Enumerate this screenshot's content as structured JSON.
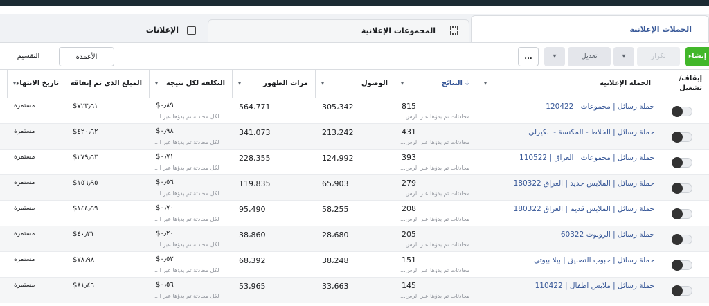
{
  "tabs": [
    "الحملات الإعلانية",
    "المجموعات الإعلانية",
    "الإعلانات"
  ],
  "toolbar": {
    "create": "إنشاء",
    "duplicate": "تكرار",
    "edit": "تعديل",
    "more": "...",
    "columns": "الأعمدة",
    "breakdown": "التقسيم"
  },
  "table": {
    "headers": [
      "إيقاف/ تشغيل",
      "الحملة الإعلانية",
      "النتائج",
      "الوصول",
      "مرات الظهور",
      "التكلفة لكل نتيجة",
      "المبلغ الذي تم إنفاقه",
      "تاريخ الانتهاء"
    ],
    "rows": [
      {
        "name": "حملة رسائل | مجموعات | 120422",
        "results": "815",
        "results_note": "محادثات تم بدؤها عبر الرس...",
        "reach": "305،342",
        "impressions": "564،771",
        "cost": "$٠٫٨٩",
        "cost_note": "لكل محادثة تم بدؤها عبر ا...",
        "spent": "$٧٢٣٫٦١",
        "end": "مستمرة"
      },
      {
        "name": "حملة رسائل | الخلاط - المكنسة - الكيرلي",
        "results": "431",
        "results_note": "محادثات تم بدؤها عبر الرس...",
        "reach": "213،242",
        "impressions": "341،073",
        "cost": "$٠٫٩٨",
        "cost_note": "لكل محادثة تم بدؤها عبر ا...",
        "spent": "$٤٢٠٫٦٢",
        "end": "مستمرة"
      },
      {
        "name": "حملة رسائل | مجموعات | العراق | 110522",
        "results": "393",
        "results_note": "محادثات تم بدؤها عبر الرس...",
        "reach": "124،992",
        "impressions": "228،355",
        "cost": "$٠٫٧١",
        "cost_note": "لكل محادثة تم بدؤها عبر ا...",
        "spent": "$٢٧٩٫٦٣",
        "end": "مستمرة"
      },
      {
        "name": "حملة رسائل | الملابس جديد | العراق 180322",
        "results": "279",
        "results_note": "محادثات تم بدؤها عبر الرس...",
        "reach": "65،903",
        "impressions": "119،835",
        "cost": "$٠٫٥٦",
        "cost_note": "لكل محادثة تم بدؤها عبر ا...",
        "spent": "$١٥٦٫٩٥",
        "end": "مستمرة"
      },
      {
        "name": "حملة رسائل | الملابس قديم | العراق 180322",
        "results": "208",
        "results_note": "محادثات تم بدؤها عبر الرس...",
        "reach": "58،255",
        "impressions": "95،490",
        "cost": "$٠٫٧٠",
        "cost_note": "لكل محادثة تم بدؤها عبر ا...",
        "spent": "$١٤٤٫٩٩",
        "end": "مستمرة"
      },
      {
        "name": "حملة رسائل | الروبوت 60322",
        "results": "205",
        "results_note": "محادثات تم بدؤها عبر الرس...",
        "reach": "28،680",
        "impressions": "38،860",
        "cost": "$٠٫٢٠",
        "cost_note": "لكل محادثة تم بدؤها عبر ا...",
        "spent": "$٤٠٫٣١",
        "end": "مستمرة"
      },
      {
        "name": "حملة رسائل | حبوب التصبيق | بيلا بيوتي",
        "results": "151",
        "results_note": "محادثات تم بدؤها عبر الرس...",
        "reach": "38،248",
        "impressions": "68،392",
        "cost": "$٠٫٥٢",
        "cost_note": "لكل محادثة تم بدؤها عبر ا...",
        "spent": "$٧٨٫٩٨",
        "end": "مستمرة"
      },
      {
        "name": "حملة رسائل | ملابس اطفال | 110422",
        "results": "145",
        "results_note": "محادثات تم بدؤها عبر الرس...",
        "reach": "33،663",
        "impressions": "53،965",
        "cost": "$٠٫٥٦",
        "cost_note": "لكل محادثة تم بدؤها عبر ا...",
        "spent": "$٨١٫٤٦",
        "end": "مستمرة"
      }
    ]
  }
}
